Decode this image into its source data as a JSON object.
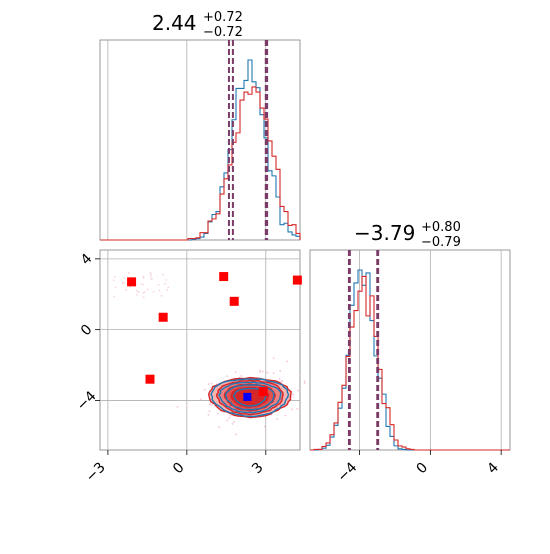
{
  "chart_data": [
    {
      "type": "histogram",
      "panel": "top-left",
      "param_index": 0,
      "title_main": "2.44",
      "title_plus": "+0.72",
      "title_minus": "−0.72",
      "xlim": [
        -3.3,
        4.3
      ],
      "quantiles": [
        1.72,
        2.44,
        3.16
      ],
      "dashed_lines": [
        1.6,
        1.75,
        3.0,
        3.05
      ],
      "grid": true,
      "series": [
        {
          "name": "blue",
          "color": "#1f77b4",
          "mean": 2.35,
          "sd": 0.63,
          "seed": 11
        },
        {
          "name": "red",
          "color": "#d62728",
          "mean": 2.44,
          "sd": 0.72,
          "seed": 23
        }
      ]
    },
    {
      "type": "scatter-contour",
      "panel": "bottom-left",
      "xlim": [
        -3.3,
        4.3
      ],
      "ylim": [
        -6.8,
        4.5
      ],
      "xticks": [
        -3,
        0,
        3
      ],
      "xtick_labels": [
        "−3",
        "0",
        "3"
      ],
      "yticks": [
        -4,
        0,
        4
      ],
      "ytick_labels": [
        "−4",
        "0",
        "4"
      ],
      "grid": true,
      "contour_center": [
        2.4,
        -3.8
      ],
      "contour_levels_red": [
        [
          1.55,
          1.1
        ],
        [
          1.25,
          0.95
        ],
        [
          0.95,
          0.75
        ],
        [
          0.7,
          0.55
        ]
      ],
      "contour_levels_blue": [
        [
          1.45,
          1.05
        ],
        [
          1.15,
          0.85
        ],
        [
          0.9,
          0.7
        ],
        [
          0.6,
          0.5
        ]
      ],
      "fill_colors": [
        "#f5b5b0",
        "#ee8080",
        "#e35050",
        "#d62728"
      ],
      "red_markers": [
        [
          -2.1,
          2.7
        ],
        [
          -0.9,
          0.7
        ],
        [
          1.4,
          3.0
        ],
        [
          1.8,
          1.6
        ],
        [
          4.2,
          2.8
        ],
        [
          -1.4,
          -2.8
        ],
        [
          2.9,
          -3.5
        ]
      ],
      "blue_marker": [
        2.3,
        -3.8
      ],
      "marker_red": "#ff0000",
      "marker_blue": "#0000ff"
    },
    {
      "type": "histogram",
      "panel": "bottom-right",
      "param_index": 1,
      "title_main": "−3.79",
      "title_plus": "+0.80",
      "title_minus": "−0.79",
      "xlim": [
        -6.8,
        4.5
      ],
      "xticks": [
        -4,
        0,
        4
      ],
      "xtick_labels": [
        "−4",
        "0",
        "4"
      ],
      "quantiles": [
        -4.58,
        -3.79,
        -2.99
      ],
      "dashed_lines": [
        -4.6,
        -4.55,
        -3.0,
        -2.95
      ],
      "grid": true,
      "series": [
        {
          "name": "blue",
          "color": "#1f77b4",
          "mean": -3.85,
          "sd": 0.72,
          "seed": 37
        },
        {
          "name": "red",
          "color": "#d62728",
          "mean": -3.79,
          "sd": 0.8,
          "seed": 41
        }
      ]
    }
  ],
  "colors": {
    "blue": "#1f77b4",
    "red": "#d62728",
    "dashed_line": "#7a3b66",
    "grid": "#b0b0b0",
    "spine": "#808080"
  }
}
